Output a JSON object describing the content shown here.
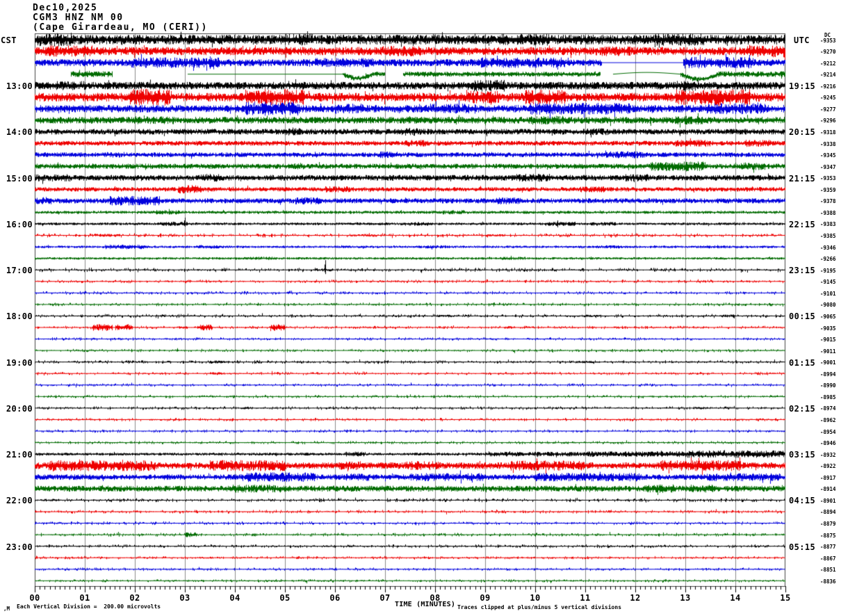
{
  "header": {
    "date": "Dec10,2025",
    "station": "CGM3 HNZ NM 00",
    "location": "(Cape Girardeau, MO (CERI))"
  },
  "axes": {
    "left_timezone": "CST",
    "right_timezone": "UTC",
    "dc_column_header": "DC",
    "x_title": "TIME (MINUTES)",
    "x_tick_labels": [
      "00",
      "01",
      "02",
      "03",
      "04",
      "05",
      "06",
      "07",
      "08",
      "09",
      "10",
      "11",
      "12",
      "13",
      "14",
      "15"
    ]
  },
  "footer": {
    "scale_note": "Each Vertical Division =  200.00 microvolts",
    "clip_note": "Traces clipped at plus/minus 5 vertical divisions",
    "watermark": ",M"
  },
  "chart_data": {
    "type": "line",
    "kind": "helicorder-seismogram",
    "title": "CGM3 HNZ NM 00 (Cape Girardeau, MO (CERI)) Dec10,2025",
    "minutes_per_line": 15,
    "x_range": [
      0,
      15
    ],
    "grid": "vertical lines each minute",
    "grid_color": "#8a8a8a",
    "frame_color": "#444444",
    "palette": {
      "black": "#000000",
      "red": "#ee0000",
      "blue": "#0000dd",
      "green": "#006b00"
    },
    "trace_color_cycle": [
      "black",
      "red",
      "blue",
      "green"
    ],
    "rows": [
      {
        "cst": "",
        "utc": "",
        "dc": "-9353",
        "color": "black",
        "amp": 5.2,
        "bursts": [
          [
            0.05,
            0.75,
            1.4
          ],
          [
            4.9,
            5.6,
            1.25
          ],
          [
            9.3,
            10.3,
            1.2
          ],
          [
            12.4,
            13.4,
            1.25
          ]
        ],
        "spikes": [
          [
            5.45,
            12,
            4
          ]
        ]
      },
      {
        "cst": "",
        "utc": "",
        "dc": "-9270",
        "color": "red",
        "amp": 4.4,
        "bursts": [
          [
            0.2,
            1.2,
            1.35
          ],
          [
            6.9,
            7.7,
            1.25
          ],
          [
            11.3,
            11.9,
            1.2
          ],
          [
            14.2,
            15,
            1.5
          ]
        ]
      },
      {
        "cst": "",
        "utc": "",
        "dc": "-9212",
        "color": "blue",
        "amp": 3.8,
        "bursts": [
          [
            1.9,
            3.7,
            1.45
          ],
          [
            5.6,
            6.8,
            1.3
          ],
          [
            8.9,
            10.6,
            1.45
          ],
          [
            12.95,
            14.35,
            1.6
          ]
        ],
        "flats": [
          [
            11.32,
            12.95
          ]
        ],
        "spikes": [
          [
            3.5,
            9,
            9
          ],
          [
            10.45,
            4,
            10
          ],
          [
            14.28,
            11,
            3
          ]
        ]
      },
      {
        "cst": "",
        "utc": "",
        "dc": "-9214",
        "color": "green",
        "amp": 2.6,
        "gaps": [
          [
            0,
            0.72
          ],
          [
            1.55,
            3.05
          ],
          [
            7.0,
            7.35
          ],
          [
            11.3,
            11.55
          ]
        ],
        "flats": [
          [
            3.05,
            6.15
          ],
          [
            11.55,
            12.9
          ]
        ],
        "dips": [
          [
            6.15,
            6.75,
            6
          ],
          [
            11.55,
            12.9,
            -2.5
          ],
          [
            12.9,
            13.65,
            7
          ]
        ],
        "bursts": [
          [
            0.72,
            1.55,
            1.2
          ],
          [
            13.65,
            15,
            1.15
          ]
        ]
      },
      {
        "cst": "13:00",
        "utc": "19:15",
        "dc": "-9216",
        "color": "black",
        "amp": 4.0,
        "bursts": [
          [
            0.3,
            1.1,
            1.2
          ],
          [
            8.6,
            9.4,
            1.55
          ],
          [
            12.8,
            13.2,
            1.35
          ]
        ],
        "spikes": [
          [
            8.9,
            8,
            6
          ]
        ]
      },
      {
        "cst": "",
        "utc": "",
        "dc": "-9245",
        "color": "red",
        "amp": 4.6,
        "bursts": [
          [
            1.9,
            2.7,
            1.95
          ],
          [
            4.2,
            5.4,
            1.85
          ],
          [
            8.6,
            9.3,
            1.45
          ],
          [
            9.8,
            10.6,
            1.7
          ],
          [
            12.8,
            14.3,
            1.8
          ]
        ]
      },
      {
        "cst": "",
        "utc": "",
        "dc": "-9277",
        "color": "blue",
        "amp": 4.0,
        "bursts": [
          [
            4.2,
            5.3,
            1.85
          ],
          [
            6.0,
            6.6,
            1.35
          ],
          [
            7.9,
            8.8,
            1.35
          ],
          [
            9.9,
            11.9,
            1.55
          ],
          [
            13.4,
            14.6,
            1.45
          ]
        ],
        "spikes": [
          [
            4.6,
            10,
            10
          ],
          [
            14.45,
            9,
            5
          ]
        ]
      },
      {
        "cst": "",
        "utc": "",
        "dc": "-9296",
        "color": "green",
        "amp": 3.6,
        "bursts": [
          [
            2.0,
            2.8,
            1.15
          ],
          [
            9.9,
            10.6,
            1.3
          ],
          [
            12.8,
            13.4,
            1.3
          ]
        ]
      },
      {
        "cst": "14:00",
        "utc": "20:15",
        "dc": "-9318",
        "color": "black",
        "amp": 3.0,
        "bursts": [
          [
            5.0,
            5.3,
            1.4
          ],
          [
            7.3,
            7.7,
            1.4
          ],
          [
            11.0,
            11.5,
            1.2
          ]
        ],
        "spikes": [
          [
            5.15,
            6,
            4
          ]
        ]
      },
      {
        "cst": "",
        "utc": "",
        "dc": "-9338",
        "color": "red",
        "amp": 2.5,
        "bursts": [
          [
            7.4,
            7.8,
            1.4
          ],
          [
            12.8,
            13.5,
            1.5
          ],
          [
            14.2,
            14.7,
            1.5
          ]
        ]
      },
      {
        "cst": "",
        "utc": "",
        "dc": "-9345",
        "color": "blue",
        "amp": 2.5,
        "bursts": [
          [
            1.3,
            1.7,
            1.2
          ],
          [
            6.9,
            7.3,
            1.4
          ],
          [
            11.4,
            12.2,
            1.5
          ]
        ]
      },
      {
        "cst": "",
        "utc": "",
        "dc": "-9347",
        "color": "green",
        "amp": 2.7,
        "bursts": [
          [
            5.0,
            5.4,
            1.2
          ],
          [
            12.3,
            13.4,
            1.85
          ],
          [
            14.1,
            14.6,
            1.5
          ]
        ]
      },
      {
        "cst": "15:00",
        "utc": "21:15",
        "dc": "-9353",
        "color": "black",
        "amp": 3.0,
        "bursts": [
          [
            0.0,
            0.7,
            1.3
          ],
          [
            3.2,
            3.7,
            1.4
          ],
          [
            9.6,
            10.3,
            1.4
          ],
          [
            11.8,
            12.3,
            1.3
          ]
        ]
      },
      {
        "cst": "",
        "utc": "",
        "dc": "-9359",
        "color": "red",
        "amp": 2.3,
        "bursts": [
          [
            2.85,
            3.35,
            1.95
          ],
          [
            5.8,
            6.3,
            1.4
          ],
          [
            10.9,
            11.4,
            1.4
          ]
        ]
      },
      {
        "cst": "",
        "utc": "",
        "dc": "-9378",
        "color": "blue",
        "amp": 2.7,
        "bursts": [
          [
            0.0,
            0.35,
            1.5
          ],
          [
            1.5,
            2.5,
            1.85
          ],
          [
            5.2,
            5.7,
            1.4
          ],
          [
            9.2,
            9.7,
            1.4
          ]
        ],
        "spikes": [
          [
            1.95,
            7,
            5
          ]
        ]
      },
      {
        "cst": "",
        "utc": "",
        "dc": "-9388",
        "color": "green",
        "amp": 1.6,
        "bursts": [
          [
            2.4,
            2.9,
            1.5
          ],
          [
            8.1,
            8.6,
            1.4
          ]
        ]
      },
      {
        "cst": "16:00",
        "utc": "22:15",
        "dc": "-9383",
        "color": "black",
        "amp": 1.4,
        "bursts": [
          [
            2.5,
            3.05,
            1.6
          ],
          [
            7.4,
            7.9,
            1.4
          ],
          [
            10.2,
            10.8,
            1.6
          ],
          [
            11.1,
            11.6,
            1.4
          ]
        ],
        "spikes": [
          [
            3.0,
            9,
            4
          ],
          [
            10.45,
            5,
            5
          ]
        ]
      },
      {
        "cst": "",
        "utc": "",
        "dc": "-9385",
        "color": "red",
        "amp": 1.1,
        "bursts": [
          [
            1.2,
            1.7,
            1.5
          ],
          [
            6.3,
            6.8,
            1.4
          ],
          [
            9.0,
            9.4,
            1.3
          ]
        ]
      },
      {
        "cst": "",
        "utc": "",
        "dc": "-9346",
        "color": "blue",
        "amp": 1.3,
        "bursts": [
          [
            1.4,
            2.2,
            1.9
          ],
          [
            3.2,
            3.7,
            1.4
          ],
          [
            7.8,
            8.3,
            1.3
          ],
          [
            11.2,
            11.7,
            1.3
          ],
          [
            13.3,
            13.8,
            1.3
          ]
        ]
      },
      {
        "cst": "",
        "utc": "",
        "dc": "-9266",
        "color": "green",
        "amp": 1.3,
        "bursts": [
          [
            4.3,
            4.8,
            1.4
          ],
          [
            9.3,
            9.8,
            1.3
          ]
        ]
      },
      {
        "cst": "17:00",
        "utc": "23:15",
        "dc": "-9195",
        "color": "black",
        "amp": 1.1,
        "bursts": [
          [
            5.6,
            5.95,
            1.5
          ]
        ],
        "spikes": [
          [
            5.8,
            14,
            6
          ]
        ]
      },
      {
        "cst": "",
        "utc": "",
        "dc": "-9145",
        "color": "red",
        "amp": 0.9
      },
      {
        "cst": "",
        "utc": "",
        "dc": "-9101",
        "color": "blue",
        "amp": 0.9,
        "bursts": [
          [
            5.0,
            5.3,
            1.3
          ]
        ]
      },
      {
        "cst": "",
        "utc": "",
        "dc": "-9080",
        "color": "green",
        "amp": 0.9
      },
      {
        "cst": "18:00",
        "utc": "00:15",
        "dc": "-9065",
        "color": "black",
        "amp": 1.0,
        "bursts": [
          [
            8.0,
            8.4,
            1.4
          ],
          [
            10.9,
            11.3,
            1.3
          ],
          [
            13.7,
            14.0,
            1.6
          ]
        ]
      },
      {
        "cst": "",
        "utc": "",
        "dc": "-9035",
        "color": "red",
        "amp": 0.8,
        "bursts": [
          [
            1.15,
            1.55,
            4.4
          ],
          [
            1.6,
            1.95,
            3.8
          ],
          [
            2.85,
            3.05,
            1.8
          ],
          [
            3.25,
            3.55,
            4.2
          ],
          [
            4.7,
            5.0,
            4.4
          ],
          [
            9.4,
            9.6,
            1.6
          ]
        ]
      },
      {
        "cst": "",
        "utc": "",
        "dc": "-9015",
        "color": "blue",
        "amp": 0.8,
        "bursts": [
          [
            1.5,
            1.75,
            1.6
          ],
          [
            5.0,
            5.25,
            1.5
          ]
        ]
      },
      {
        "cst": "",
        "utc": "",
        "dc": "-9011",
        "color": "green",
        "amp": 0.8
      },
      {
        "cst": "19:00",
        "utc": "01:15",
        "dc": "-9001",
        "color": "black",
        "amp": 0.9,
        "bursts": [
          [
            3.5,
            3.8,
            1.8
          ],
          [
            10.8,
            11.15,
            1.5
          ]
        ]
      },
      {
        "cst": "",
        "utc": "",
        "dc": "-8994",
        "color": "red",
        "amp": 0.8,
        "bursts": [
          [
            3.5,
            3.8,
            1.8
          ],
          [
            6.3,
            6.6,
            1.4
          ]
        ]
      },
      {
        "cst": "",
        "utc": "",
        "dc": "-8990",
        "color": "blue",
        "amp": 0.8
      },
      {
        "cst": "",
        "utc": "",
        "dc": "-8985",
        "color": "green",
        "amp": 0.8,
        "bursts": [
          [
            10.1,
            10.35,
            1.5
          ]
        ]
      },
      {
        "cst": "20:00",
        "utc": "02:15",
        "dc": "-8974",
        "color": "black",
        "amp": 0.9,
        "bursts": [
          [
            4.1,
            4.35,
            1.5
          ],
          [
            13.2,
            13.5,
            1.4
          ]
        ]
      },
      {
        "cst": "",
        "utc": "",
        "dc": "-8962",
        "color": "red",
        "amp": 0.8
      },
      {
        "cst": "",
        "utc": "",
        "dc": "-8954",
        "color": "blue",
        "amp": 0.8
      },
      {
        "cst": "",
        "utc": "",
        "dc": "-8946",
        "color": "green",
        "amp": 0.8
      },
      {
        "cst": "21:00",
        "utc": "03:15",
        "dc": "-8932",
        "color": "black",
        "amp": 1.5,
        "bursts": [
          [
            6.2,
            6.6,
            1.7
          ],
          [
            9.0,
            11.0,
            1.6
          ],
          [
            11.0,
            13.0,
            2.0
          ],
          [
            13.0,
            15.0,
            2.6
          ]
        ]
      },
      {
        "cst": "",
        "utc": "",
        "dc": "-8922",
        "color": "red",
        "amp": 3.5,
        "bursts": [
          [
            0.3,
            2.4,
            1.65
          ],
          [
            3.5,
            5.0,
            1.65
          ],
          [
            6.0,
            6.6,
            1.35
          ],
          [
            7.4,
            8.1,
            1.35
          ],
          [
            9.5,
            11.0,
            1.55
          ],
          [
            12.5,
            14.1,
            1.65
          ]
        ]
      },
      {
        "cst": "",
        "utc": "",
        "dc": "-8917",
        "color": "blue",
        "amp": 2.9,
        "bursts": [
          [
            4.2,
            5.6,
            1.75
          ],
          [
            6.2,
            6.7,
            1.35
          ],
          [
            7.5,
            9.0,
            1.45
          ],
          [
            10.0,
            12.1,
            1.55
          ],
          [
            13.4,
            14.9,
            1.45
          ]
        ]
      },
      {
        "cst": "",
        "utc": "",
        "dc": "-8914",
        "color": "green",
        "amp": 3.1,
        "bursts": [
          [
            3.9,
            5.0,
            1.35
          ],
          [
            12.2,
            12.8,
            1.45
          ],
          [
            13.1,
            13.6,
            1.35
          ]
        ],
        "spikes": [
          [
            12.45,
            3,
            9
          ]
        ]
      },
      {
        "cst": "22:00",
        "utc": "04:15",
        "dc": "-8901",
        "color": "black",
        "amp": 1.0,
        "bursts": [
          [
            0.1,
            0.5,
            1.35
          ]
        ]
      },
      {
        "cst": "",
        "utc": "",
        "dc": "-8894",
        "color": "red",
        "amp": 0.9
      },
      {
        "cst": "",
        "utc": "",
        "dc": "-8879",
        "color": "blue",
        "amp": 0.9
      },
      {
        "cst": "",
        "utc": "",
        "dc": "-8875",
        "color": "green",
        "amp": 0.9,
        "bursts": [
          [
            3.0,
            3.25,
            2.8
          ]
        ]
      },
      {
        "cst": "23:00",
        "utc": "05:15",
        "dc": "-8877",
        "color": "black",
        "amp": 0.9
      },
      {
        "cst": "",
        "utc": "",
        "dc": "-8867",
        "color": "red",
        "amp": 0.8
      },
      {
        "cst": "",
        "utc": "",
        "dc": "-8851",
        "color": "blue",
        "amp": 0.8
      },
      {
        "cst": "",
        "utc": "",
        "dc": "-8836",
        "color": "green",
        "amp": 0.8
      }
    ]
  }
}
